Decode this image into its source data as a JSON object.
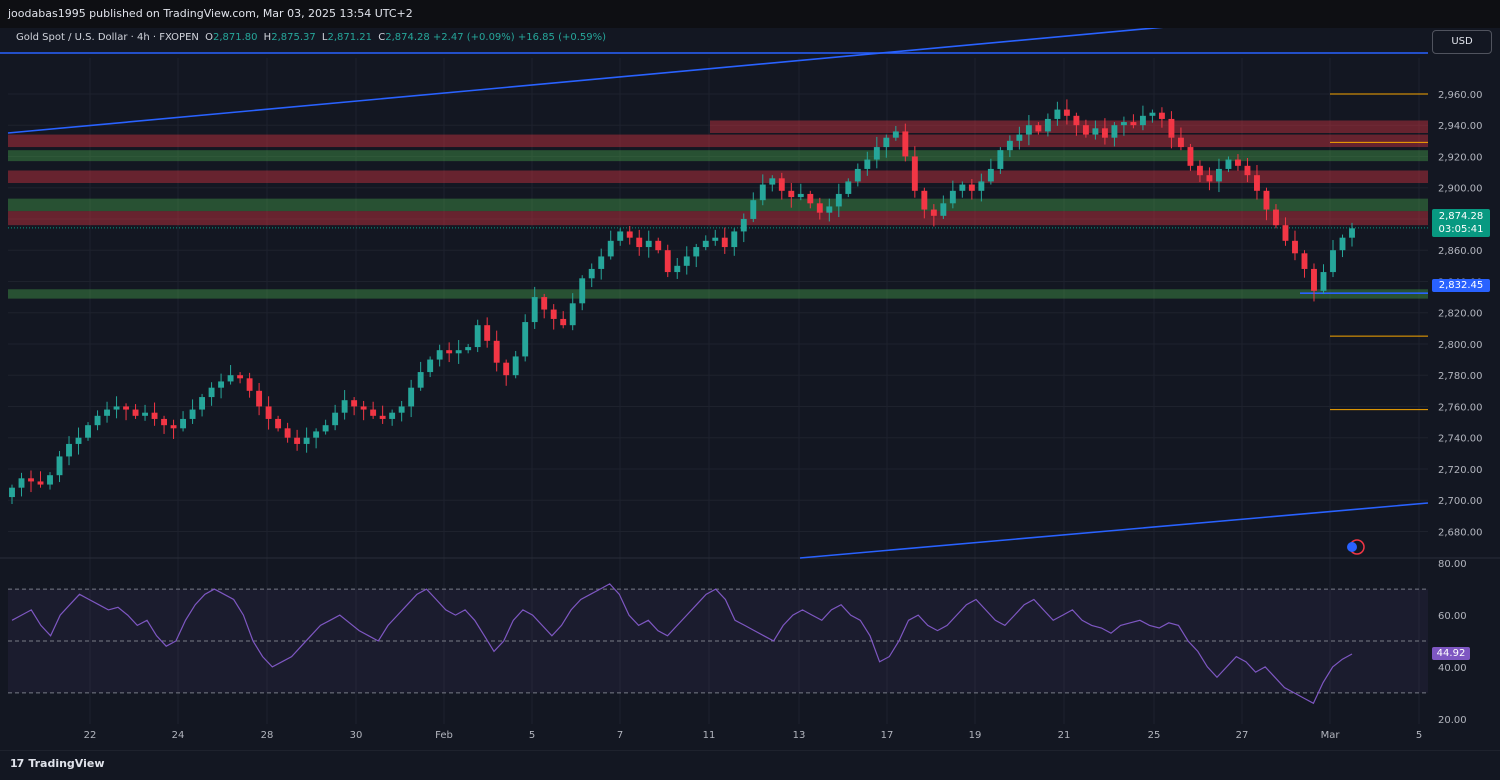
{
  "header": {
    "publisher": "joodabas1995 published on TradingView.com, Mar 03, 2025 13:54 UTC+2"
  },
  "legend": {
    "symbol": "Gold Spot / U.S. Dollar · 4h · FXOPEN",
    "o_label": "O",
    "o": "2,871.80",
    "h_label": "H",
    "h": "2,875.37",
    "l_label": "L",
    "l": "2,871.21",
    "c_label": "C",
    "c": "2,874.28",
    "change": "+2.47 (+0.09%)",
    "change2": "+16.85 (+0.59%)"
  },
  "currency_button": "USD",
  "footer": {
    "brand": "TradingView",
    "logo": "17"
  },
  "colors": {
    "background": "#131722",
    "up": "#26a69a",
    "down": "#f23645",
    "trendline": "#2962ff",
    "rsi_line": "#7e57c2",
    "level_orange": "#f7a600"
  },
  "chart_data": {
    "type": "candlestick",
    "symbol": "Gold Spot / U.S. Dollar",
    "timeframe": "4h",
    "price_axis": {
      "ylim": [
        2663,
        2983
      ],
      "ticks": [
        2680,
        2700,
        2720,
        2740,
        2760,
        2780,
        2800,
        2820,
        2840,
        2860,
        2880,
        2900,
        2920,
        2940,
        2960
      ],
      "tick_labels": [
        "2,680.00",
        "2,700.00",
        "2,720.00",
        "2,740.00",
        "2,760.00",
        "2,780.00",
        "2,800.00",
        "2,820.00",
        "2,840.00",
        "2,860.00",
        "2,880.00",
        "2,900.00",
        "2,920.00",
        "2,940.00",
        "2,960.00"
      ],
      "current_price_label": "2,874.28",
      "current_price": 2874.28,
      "countdown": "03:05:41",
      "support_label": "2,832.45",
      "support_price": 2832.45
    },
    "x_axis": {
      "tick_labels": [
        "22",
        "24",
        "28",
        "30",
        "Feb",
        "5",
        "7",
        "11",
        "13",
        "17",
        "19",
        "21",
        "25",
        "27",
        "Mar",
        "5"
      ]
    },
    "zones": [
      {
        "low": 2935,
        "high": 2943,
        "color": "#f23645"
      },
      {
        "low": 2926,
        "high": 2934,
        "color": "#f23645"
      },
      {
        "low": 2917,
        "high": 2924,
        "color": "#4caf50"
      },
      {
        "low": 2903,
        "high": 2911,
        "color": "#f23645"
      },
      {
        "low": 2885,
        "high": 2893,
        "color": "#4caf50"
      },
      {
        "low": 2876,
        "high": 2885,
        "color": "#f23645"
      },
      {
        "low": 2829,
        "high": 2835,
        "color": "#4caf50"
      }
    ],
    "orange_levels": [
      2960,
      2929,
      2805,
      2758
    ],
    "closes": [
      2708,
      2714,
      2712,
      2710,
      2716,
      2728,
      2736,
      2740,
      2748,
      2754,
      2758,
      2760,
      2758,
      2754,
      2756,
      2752,
      2748,
      2746,
      2752,
      2758,
      2766,
      2772,
      2776,
      2780,
      2778,
      2770,
      2760,
      2752,
      2746,
      2740,
      2736,
      2740,
      2744,
      2748,
      2756,
      2764,
      2760,
      2758,
      2754,
      2752,
      2756,
      2760,
      2772,
      2782,
      2790,
      2796,
      2794,
      2796,
      2798,
      2812,
      2802,
      2788,
      2780,
      2792,
      2814,
      2830,
      2822,
      2816,
      2812,
      2826,
      2842,
      2848,
      2856,
      2866,
      2872,
      2868,
      2862,
      2866,
      2860,
      2846,
      2850,
      2856,
      2862,
      2866,
      2868,
      2862,
      2872,
      2880,
      2892,
      2902,
      2906,
      2898,
      2894,
      2896,
      2890,
      2884,
      2888,
      2896,
      2904,
      2912,
      2918,
      2926,
      2932,
      2936,
      2920,
      2898,
      2886,
      2882,
      2890,
      2898,
      2902,
      2898,
      2904,
      2912,
      2924,
      2930,
      2934,
      2940,
      2936,
      2944,
      2950,
      2946,
      2940,
      2934,
      2938,
      2932,
      2940,
      2942,
      2940,
      2946,
      2948,
      2944,
      2932,
      2926,
      2914,
      2908,
      2904,
      2912,
      2918,
      2914,
      2908,
      2898,
      2886,
      2876,
      2866,
      2858,
      2848,
      2834,
      2846,
      2860,
      2868,
      2874
    ],
    "rsi": {
      "label": "44.92",
      "value": 44.92,
      "ylim": [
        18,
        82
      ],
      "levels": [
        30,
        50,
        70
      ],
      "tick_labels": [
        "80.00",
        "60.00",
        "40.00",
        "20.00"
      ],
      "ticks": [
        80,
        60,
        40,
        20
      ],
      "values": [
        58,
        60,
        62,
        56,
        52,
        60,
        64,
        68,
        66,
        64,
        62,
        63,
        60,
        56,
        58,
        52,
        48,
        50,
        58,
        64,
        68,
        70,
        68,
        66,
        60,
        50,
        44,
        40,
        42,
        44,
        48,
        52,
        56,
        58,
        60,
        57,
        54,
        52,
        50,
        56,
        60,
        64,
        68,
        70,
        66,
        62,
        60,
        62,
        58,
        52,
        46,
        50,
        58,
        62,
        60,
        56,
        52,
        56,
        62,
        66,
        68,
        70,
        72,
        68,
        60,
        56,
        58,
        54,
        52,
        56,
        60,
        64,
        68,
        70,
        66,
        58,
        56,
        54,
        52,
        50,
        56,
        60,
        62,
        60,
        58,
        62,
        64,
        60,
        58,
        52,
        42,
        44,
        50,
        58,
        60,
        56,
        54,
        56,
        60,
        64,
        66,
        62,
        58,
        56,
        60,
        64,
        66,
        62,
        58,
        60,
        62,
        58,
        56,
        55,
        53,
        56,
        57,
        58,
        56,
        55,
        57,
        56,
        50,
        46,
        40,
        36,
        40,
        44,
        42,
        38,
        40,
        36,
        32,
        30,
        28,
        26,
        34,
        40,
        43,
        45
      ]
    }
  }
}
